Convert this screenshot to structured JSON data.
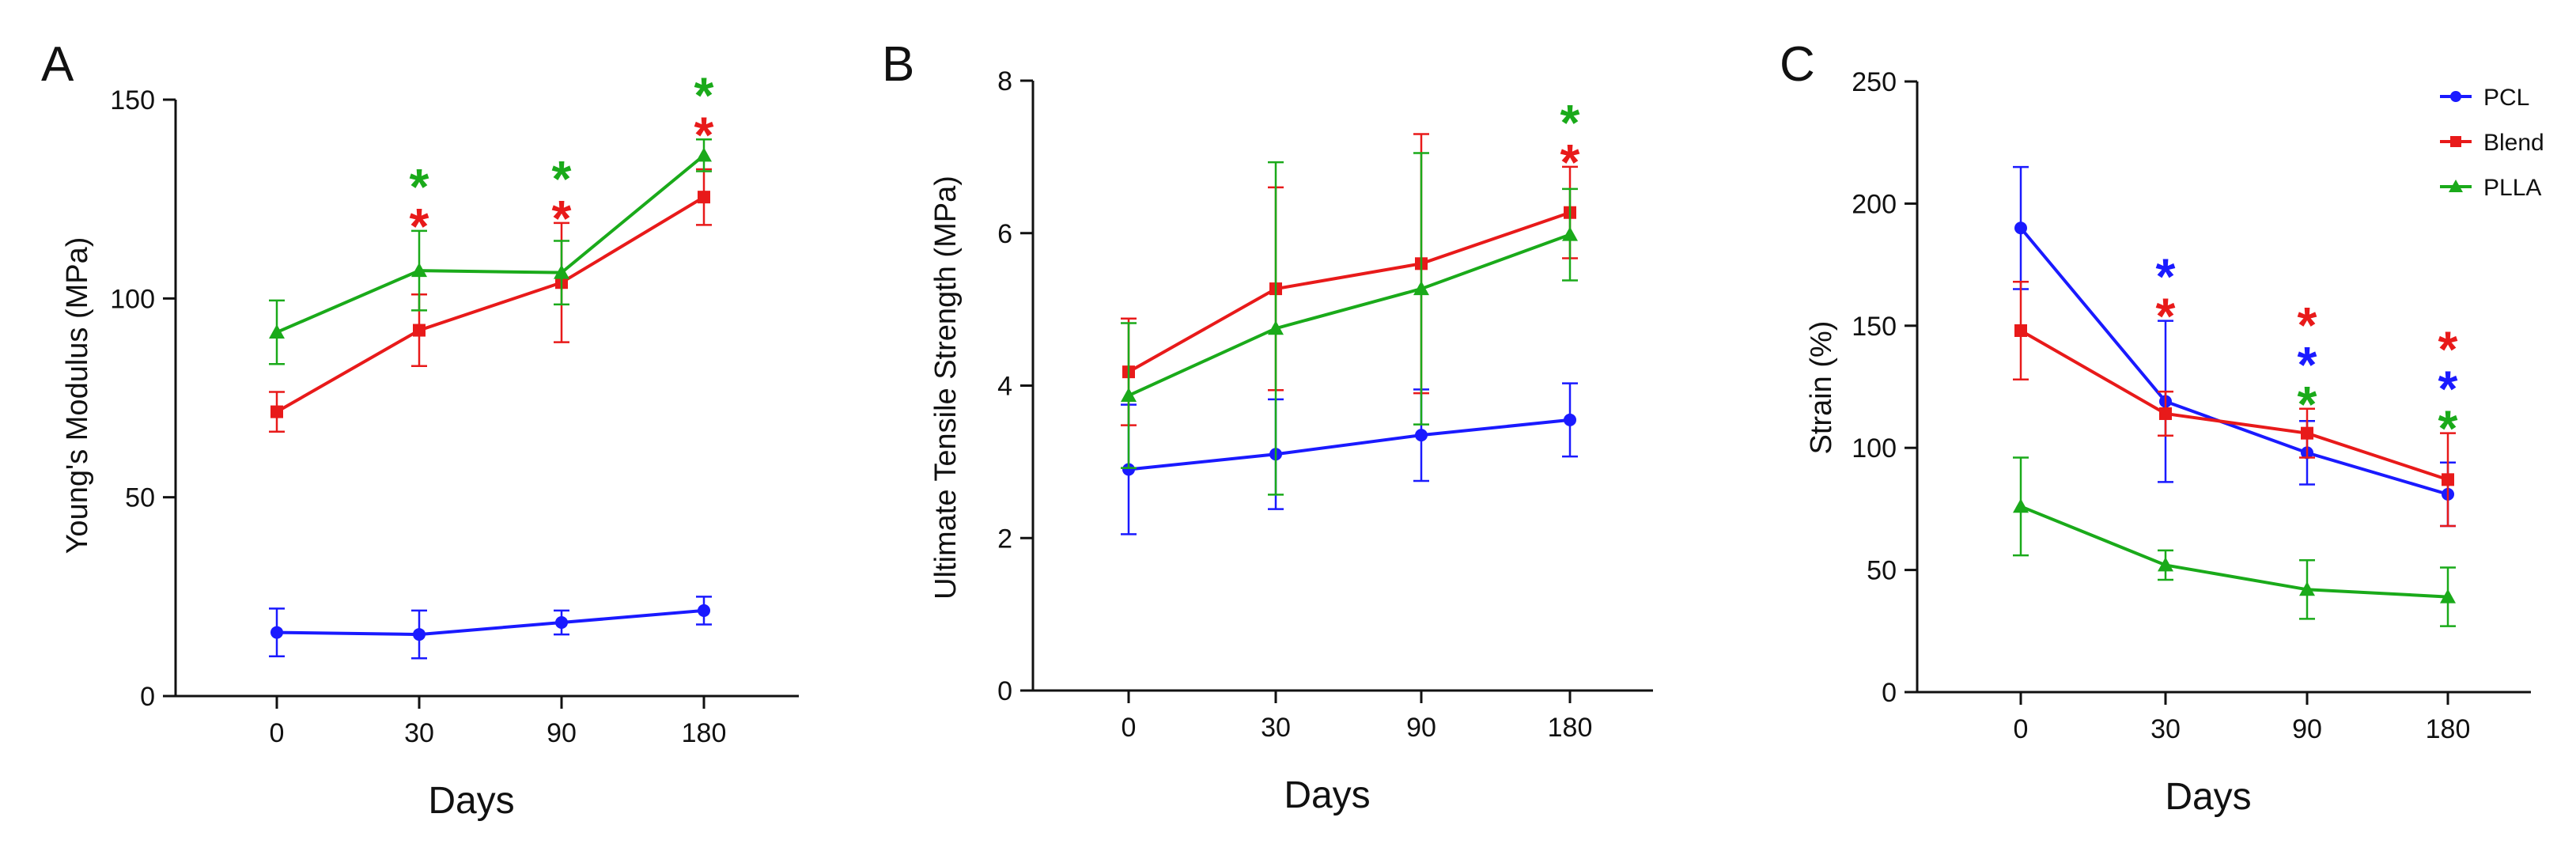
{
  "colors": {
    "PCL": "#1a1aff",
    "Blend": "#e81a1a",
    "PLLA": "#1aaa1a"
  },
  "legend": [
    "PCL",
    "Blend",
    "PLLA"
  ],
  "chart_data": [
    {
      "type": "line",
      "panel": "A",
      "xlabel": "Days",
      "ylabel": "Young's Modulus (MPa)",
      "categories": [
        "0",
        "30",
        "90",
        "180"
      ],
      "ylim": [
        0,
        150
      ],
      "yticks": [
        "0",
        "50",
        "100",
        "150"
      ],
      "series": [
        {
          "name": "PCL",
          "values": [
            16,
            15.5,
            18.5,
            21.5
          ],
          "errors": [
            6,
            6,
            3,
            3.5
          ]
        },
        {
          "name": "Blend",
          "values": [
            71.5,
            92,
            104,
            125.5
          ],
          "errors": [
            5,
            9,
            15,
            7
          ]
        },
        {
          "name": "PLLA",
          "values": [
            91.5,
            107,
            106.5,
            136
          ],
          "errors": [
            8,
            10,
            8,
            4
          ]
        }
      ],
      "significance": [
        {
          "x": "30",
          "marks": [
            "*",
            "*"
          ],
          "series": [
            "PLLA",
            "Blend"
          ]
        },
        {
          "x": "90",
          "marks": [
            "*",
            "*"
          ],
          "series": [
            "PLLA",
            "Blend"
          ]
        },
        {
          "x": "180",
          "marks": [
            "*",
            "*"
          ],
          "series": [
            "PLLA",
            "Blend"
          ]
        }
      ]
    },
    {
      "type": "line",
      "panel": "B",
      "xlabel": "Days",
      "ylabel": "Ultimate Tensile Strength (MPa)",
      "categories": [
        "0",
        "30",
        "90",
        "180"
      ],
      "ylim": [
        0,
        8
      ],
      "yticks": [
        "0",
        "2",
        "4",
        "6",
        "8"
      ],
      "series": [
        {
          "name": "PCL",
          "values": [
            2.9,
            3.1,
            3.35,
            3.55
          ],
          "errors": [
            0.85,
            0.72,
            0.6,
            0.48
          ]
        },
        {
          "name": "Blend",
          "values": [
            4.18,
            5.27,
            5.6,
            6.27
          ],
          "errors": [
            0.7,
            1.33,
            1.7,
            0.6
          ]
        },
        {
          "name": "PLLA",
          "values": [
            3.87,
            4.75,
            5.27,
            5.98
          ],
          "errors": [
            0.95,
            2.18,
            1.78,
            0.6
          ]
        }
      ],
      "significance": [
        {
          "x": "180",
          "marks": [
            "*",
            "*"
          ],
          "series": [
            "PLLA",
            "Blend"
          ]
        }
      ]
    },
    {
      "type": "line",
      "panel": "C",
      "xlabel": "Days",
      "ylabel": "Strain (%)",
      "categories": [
        "0",
        "30",
        "90",
        "180"
      ],
      "ylim": [
        0,
        250
      ],
      "yticks": [
        "0",
        "50",
        "100",
        "150",
        "200",
        "250"
      ],
      "series": [
        {
          "name": "PCL",
          "values": [
            190,
            119,
            98,
            81
          ],
          "errors": [
            25,
            33,
            13,
            13
          ]
        },
        {
          "name": "Blend",
          "values": [
            148,
            114,
            106,
            87
          ],
          "errors": [
            20,
            9,
            10,
            19
          ]
        },
        {
          "name": "PLLA",
          "values": [
            76,
            52,
            42,
            39
          ],
          "errors": [
            20,
            6,
            12,
            12
          ]
        }
      ],
      "significance": [
        {
          "x": "30",
          "marks": [
            "*",
            "*"
          ],
          "series": [
            "PCL",
            "Blend"
          ]
        },
        {
          "x": "90",
          "marks": [
            "*",
            "*",
            "*"
          ],
          "series": [
            "Blend",
            "PCL",
            "PLLA"
          ]
        },
        {
          "x": "180",
          "marks": [
            "*",
            "*",
            "*"
          ],
          "series": [
            "Blend",
            "PCL",
            "PLLA"
          ]
        }
      ]
    }
  ]
}
